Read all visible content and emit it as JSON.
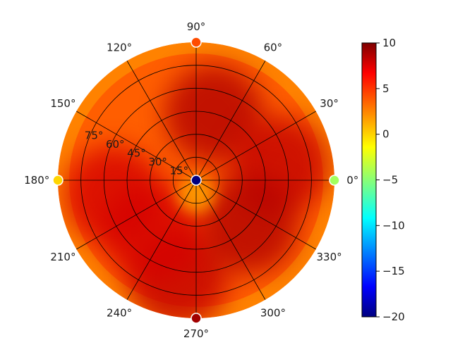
{
  "chart_data": {
    "type": "heatmap",
    "projection": "polar",
    "title": "",
    "theta_tick_labels": [
      "0°",
      "30°",
      "60°",
      "90°",
      "120°",
      "150°",
      "180°",
      "210°",
      "240°",
      "270°",
      "300°",
      "330°"
    ],
    "theta_ticks_deg": [
      0,
      30,
      60,
      90,
      120,
      150,
      180,
      210,
      240,
      270,
      300,
      330
    ],
    "radial_tick_labels": [
      "15°",
      "30°",
      "45°",
      "60°",
      "75°"
    ],
    "radial_ticks_deg": [
      15,
      30,
      45,
      60,
      75
    ],
    "r_range": [
      0,
      90
    ],
    "grid": true,
    "colormap": "jet",
    "color_range": [
      -20,
      10
    ],
    "colorbar": {
      "placement": "right",
      "tick_values": [
        10,
        5,
        0,
        -5,
        -10,
        -15,
        -20
      ],
      "tick_labels": [
        "10",
        "5",
        "0",
        "−5",
        "−10",
        "−15",
        "−20"
      ]
    },
    "background_value": 3.5,
    "hotspots": [
      {
        "theta_deg": 75,
        "r_deg": 45,
        "value": 8.5
      },
      {
        "theta_deg": 10,
        "r_deg": 55,
        "value": 8.0
      },
      {
        "theta_deg": 190,
        "r_deg": 55,
        "value": 7.5
      },
      {
        "theta_deg": 260,
        "r_deg": 65,
        "value": 8.0
      },
      {
        "theta_deg": 320,
        "r_deg": 45,
        "value": 8.5
      },
      {
        "theta_deg": 230,
        "r_deg": 45,
        "value": 7.5
      }
    ],
    "markers": [
      {
        "theta_deg": 0,
        "r_deg": 0,
        "value": -20
      },
      {
        "theta_deg": 0,
        "r_deg": 90,
        "value": -4
      },
      {
        "theta_deg": 90,
        "r_deg": 90,
        "value": 4
      },
      {
        "theta_deg": 180,
        "r_deg": 90,
        "value": 0
      },
      {
        "theta_deg": 270,
        "r_deg": 90,
        "value": 9
      }
    ]
  }
}
